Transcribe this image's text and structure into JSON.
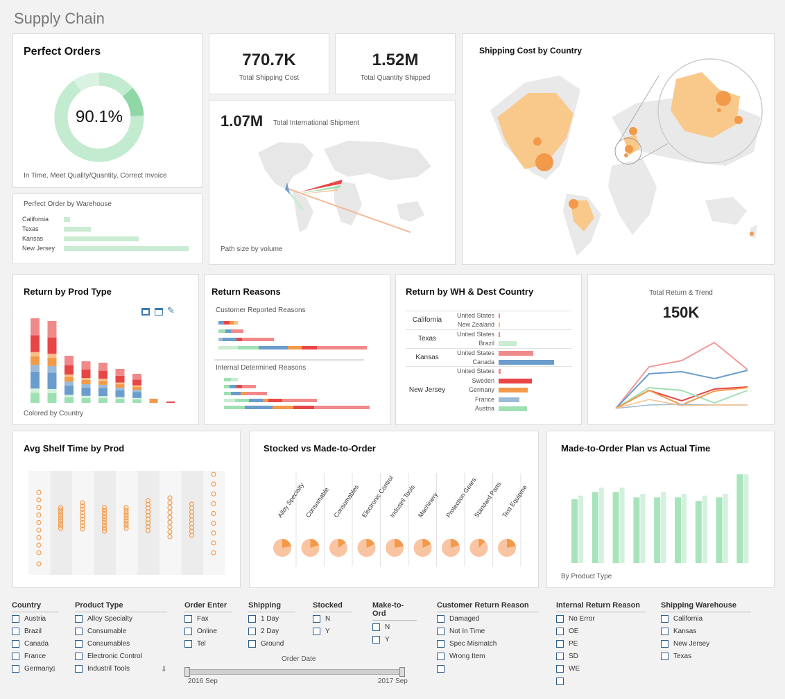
{
  "page_title": "Supply Chain",
  "perfect_orders": {
    "title": "Perfect Orders",
    "value": "90.1%",
    "fraction": 0.901,
    "caption": "In Time, Meet Quality/Quantity, Correct Invoice"
  },
  "warehouse": {
    "title": "Perfect Order by Warehouse",
    "rows": [
      {
        "label": "California",
        "value": 0.03
      },
      {
        "label": "Texas",
        "value": 0.2
      },
      {
        "label": "Kansas",
        "value": 0.59
      },
      {
        "label": "New Jersey",
        "value": 1.0
      }
    ]
  },
  "kpi_shipping_cost": {
    "value": "770.7K",
    "label": "Total Shipping Cost"
  },
  "kpi_quantity": {
    "value": "1.52M",
    "label": "Total Quantity Shipped"
  },
  "international": {
    "value": "1.07M",
    "label": "Total  International Shipment",
    "caption": "Path size by volume"
  },
  "shipping_map": {
    "title": "Shipping Cost by Country"
  },
  "return_prod": {
    "title": "Return by Prod Type",
    "caption": "Colored by Country"
  },
  "return_reasons": {
    "title": "Return Reasons",
    "customer_label": "Customer Reported Reasons",
    "internal_label": "Internal Determined Reasons"
  },
  "return_wh": {
    "title": "Return by WH & Dest Country",
    "groups": [
      {
        "wh": "California",
        "rows": [
          {
            "c": "United States",
            "v": 0.03,
            "col": "#f08a8a"
          },
          {
            "c": "New Zealand",
            "v": 0.03,
            "col": "#f6c08a"
          }
        ]
      },
      {
        "wh": "Texas",
        "rows": [
          {
            "c": "United States",
            "v": 0.03,
            "col": "#f08a8a"
          },
          {
            "c": "Brazil",
            "v": 0.33,
            "col": "#c9ecd2"
          }
        ]
      },
      {
        "wh": "Kansas",
        "rows": [
          {
            "c": "United States",
            "v": 0.62,
            "col": "#f08a8a"
          },
          {
            "c": "Canada",
            "v": 1.0,
            "col": "#6a9ccc"
          }
        ]
      },
      {
        "wh": "New Jersey",
        "rows": [
          {
            "c": "United States",
            "v": 0.04,
            "col": "#f08a8a"
          },
          {
            "c": "Sweden",
            "v": 0.6,
            "col": "#e84646"
          },
          {
            "c": "Germany",
            "v": 0.52,
            "col": "#f29a4a"
          },
          {
            "c": "France",
            "v": 0.38,
            "col": "#9dbbd8"
          },
          {
            "c": "Austria",
            "v": 0.51,
            "col": "#9fe0b2"
          }
        ]
      }
    ]
  },
  "total_return": {
    "label": "Total Return & Trend",
    "value": "150K"
  },
  "shelf_time": {
    "title": "Avg Shelf Time by Prod"
  },
  "stocked": {
    "title": "Stocked vs Made-to-Order",
    "products": [
      {
        "name": "Alloy Specialty",
        "frac": 0.22
      },
      {
        "name": "Consumable",
        "frac": 0.2
      },
      {
        "name": "Consumables",
        "frac": 0.15
      },
      {
        "name": "Electronic Control",
        "frac": 0.18
      },
      {
        "name": "Industril Tools",
        "frac": 0.22
      },
      {
        "name": "Machinery",
        "frac": 0.18
      },
      {
        "name": "Protection Gears",
        "frac": 0.2
      },
      {
        "name": "Standard Parts",
        "frac": 0.12
      },
      {
        "name": "Test Equipme",
        "frac": 0.22
      }
    ]
  },
  "made_to_order": {
    "title": "Made-to-Order Plan vs Actual Time",
    "caption": "By Product Type",
    "plan": [
      0.72,
      0.8,
      0.8,
      0.74,
      0.74,
      0.74,
      0.7,
      0.74,
      1.0
    ],
    "actual": [
      0.76,
      0.85,
      0.85,
      0.78,
      0.8,
      0.78,
      0.76,
      0.78,
      1.0
    ]
  },
  "filters": [
    {
      "title": "Country",
      "items": [
        "Austria",
        "Brazil",
        "Canada",
        "France",
        "Germany"
      ]
    },
    {
      "title": "Product Type",
      "items": [
        "Alloy Specialty",
        "Consumable",
        "Consumables",
        "Electronic Control",
        "Industril Tools"
      ]
    },
    {
      "title": "Order Enter",
      "items": [
        "Fax",
        "Online",
        "Tel"
      ]
    },
    {
      "title": "Shipping",
      "items": [
        "1 Day",
        "2 Day",
        "Ground"
      ]
    },
    {
      "title": "Stocked",
      "items": [
        "N",
        "Y"
      ]
    },
    {
      "title": "Make-to-Ord",
      "items": [
        "N",
        "Y"
      ]
    },
    {
      "title": "Customer Return Reason",
      "items": [
        "Damaged",
        "Not In Time",
        "Spec Mismatch",
        "Wrong Item",
        ""
      ]
    },
    {
      "title": "Internal Return Reason",
      "items": [
        "No Error",
        "OE",
        "PE",
        "SD",
        "WE",
        ""
      ]
    },
    {
      "title": "Shipping Warehouse",
      "items": [
        "California",
        "Kansas",
        "New Jersey",
        "Texas"
      ]
    }
  ],
  "order_date": {
    "label": "Order Date",
    "start": "2016 Sep",
    "end": "2017 Sep"
  },
  "colors": {
    "green": "#9fe0b2",
    "orange": "#f29a4a",
    "red": "#e84646",
    "blue": "#6a9ccc"
  }
}
